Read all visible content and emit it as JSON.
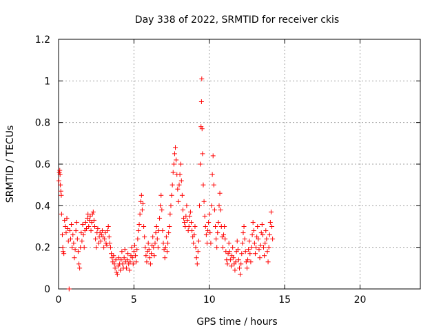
{
  "chart_data": {
    "type": "scatter",
    "title": "Day 338 of 2022, SRMTID for receiver ckis",
    "xlabel": "GPS time / hours",
    "ylabel": "SRMTID / TECUs",
    "xlim": [
      0,
      24
    ],
    "ylim": [
      0,
      1.2
    ],
    "x_ticks": [
      0,
      5,
      10,
      15,
      20
    ],
    "x_tick_labels": [
      "0",
      "5",
      "10",
      "15",
      "20"
    ],
    "y_ticks": [
      0,
      0.2,
      0.4,
      0.6,
      0.8,
      1,
      1.2
    ],
    "y_tick_labels": [
      "0",
      "0.2",
      "0.4",
      "0.6",
      "0.8",
      "1",
      "1.2"
    ],
    "grid": true,
    "marker": "+",
    "marker_color": "#ff0000",
    "series": [
      {
        "name": "SRMTID",
        "points": [
          [
            0.02,
            0.52
          ],
          [
            0.05,
            0.56
          ],
          [
            0.08,
            0.57
          ],
          [
            0.1,
            0.55
          ],
          [
            0.12,
            0.5
          ],
          [
            0.15,
            0.47
          ],
          [
            0.18,
            0.45
          ],
          [
            0.2,
            0.36
          ],
          [
            0.25,
            0.26
          ],
          [
            0.28,
            0.2
          ],
          [
            0.3,
            0.18
          ],
          [
            0.35,
            0.17
          ],
          [
            0.4,
            0.33
          ],
          [
            0.45,
            0.3
          ],
          [
            0.5,
            0.27
          ],
          [
            0.55,
            0.34
          ],
          [
            0.6,
            0.29
          ],
          [
            0.65,
            0.23
          ],
          [
            0.7,
            0.0
          ],
          [
            0.75,
            0.28
          ],
          [
            0.8,
            0.24
          ],
          [
            0.85,
            0.31
          ],
          [
            0.9,
            0.2
          ],
          [
            0.95,
            0.26
          ],
          [
            1.0,
            0.22
          ],
          [
            1.05,
            0.15
          ],
          [
            1.1,
            0.19
          ],
          [
            1.15,
            0.28
          ],
          [
            1.2,
            0.32
          ],
          [
            1.25,
            0.24
          ],
          [
            1.3,
            0.18
          ],
          [
            1.35,
            0.12
          ],
          [
            1.4,
            0.1
          ],
          [
            1.45,
            0.2
          ],
          [
            1.5,
            0.27
          ],
          [
            1.55,
            0.23
          ],
          [
            1.6,
            0.31
          ],
          [
            1.65,
            0.26
          ],
          [
            1.7,
            0.2
          ],
          [
            1.75,
            0.28
          ],
          [
            1.8,
            0.32
          ],
          [
            1.85,
            0.29
          ],
          [
            1.9,
            0.34
          ],
          [
            1.95,
            0.36
          ],
          [
            2.0,
            0.3
          ],
          [
            2.05,
            0.33
          ],
          [
            2.1,
            0.35
          ],
          [
            2.15,
            0.28
          ],
          [
            2.2,
            0.32
          ],
          [
            2.25,
            0.36
          ],
          [
            2.3,
            0.37
          ],
          [
            2.35,
            0.33
          ],
          [
            2.4,
            0.3
          ],
          [
            2.45,
            0.24
          ],
          [
            2.5,
            0.2
          ],
          [
            2.55,
            0.27
          ],
          [
            2.6,
            0.29
          ],
          [
            2.65,
            0.22
          ],
          [
            2.7,
            0.25
          ],
          [
            2.75,
            0.27
          ],
          [
            2.8,
            0.23
          ],
          [
            2.85,
            0.26
          ],
          [
            2.9,
            0.28
          ],
          [
            2.95,
            0.25
          ],
          [
            3.0,
            0.2
          ],
          [
            3.05,
            0.24
          ],
          [
            3.1,
            0.27
          ],
          [
            3.15,
            0.22
          ],
          [
            3.2,
            0.21
          ],
          [
            3.25,
            0.28
          ],
          [
            3.3,
            0.3
          ],
          [
            3.35,
            0.25
          ],
          [
            3.4,
            0.22
          ],
          [
            3.45,
            0.2
          ],
          [
            3.5,
            0.17
          ],
          [
            3.55,
            0.15
          ],
          [
            3.6,
            0.13
          ],
          [
            3.65,
            0.16
          ],
          [
            3.7,
            0.12
          ],
          [
            3.75,
            0.1
          ],
          [
            3.8,
            0.14
          ],
          [
            3.85,
            0.08
          ],
          [
            3.9,
            0.07
          ],
          [
            3.95,
            0.11
          ],
          [
            4.0,
            0.15
          ],
          [
            4.05,
            0.12
          ],
          [
            4.1,
            0.09
          ],
          [
            4.15,
            0.14
          ],
          [
            4.2,
            0.18
          ],
          [
            4.25,
            0.12
          ],
          [
            4.3,
            0.1
          ],
          [
            4.35,
            0.15
          ],
          [
            4.4,
            0.19
          ],
          [
            4.45,
            0.13
          ],
          [
            4.5,
            0.1
          ],
          [
            4.55,
            0.14
          ],
          [
            4.6,
            0.17
          ],
          [
            4.65,
            0.12
          ],
          [
            4.7,
            0.09
          ],
          [
            4.75,
            0.13
          ],
          [
            4.8,
            0.16
          ],
          [
            4.85,
            0.2
          ],
          [
            4.9,
            0.15
          ],
          [
            4.95,
            0.12
          ],
          [
            5.0,
            0.18
          ],
          [
            5.05,
            0.21
          ],
          [
            5.1,
            0.16
          ],
          [
            5.15,
            0.13
          ],
          [
            5.2,
            0.19
          ],
          [
            5.25,
            0.24
          ],
          [
            5.3,
            0.28
          ],
          [
            5.35,
            0.31
          ],
          [
            5.4,
            0.36
          ],
          [
            5.45,
            0.42
          ],
          [
            5.5,
            0.45
          ],
          [
            5.55,
            0.38
          ],
          [
            5.6,
            0.41
          ],
          [
            5.65,
            0.3
          ],
          [
            5.7,
            0.25
          ],
          [
            5.75,
            0.2
          ],
          [
            5.8,
            0.16
          ],
          [
            5.85,
            0.13
          ],
          [
            5.9,
            0.18
          ],
          [
            5.95,
            0.22
          ],
          [
            6.0,
            0.19
          ],
          [
            6.05,
            0.15
          ],
          [
            6.1,
            0.12
          ],
          [
            6.15,
            0.17
          ],
          [
            6.2,
            0.21
          ],
          [
            6.25,
            0.25
          ],
          [
            6.3,
            0.2
          ],
          [
            6.35,
            0.16
          ],
          [
            6.4,
            0.22
          ],
          [
            6.45,
            0.27
          ],
          [
            6.5,
            0.3
          ],
          [
            6.55,
            0.24
          ],
          [
            6.6,
            0.2
          ],
          [
            6.65,
            0.28
          ],
          [
            6.7,
            0.34
          ],
          [
            6.75,
            0.4
          ],
          [
            6.8,
            0.45
          ],
          [
            6.85,
            0.38
          ],
          [
            6.9,
            0.28
          ],
          [
            6.95,
            0.22
          ],
          [
            7.0,
            0.19
          ],
          [
            7.05,
            0.15
          ],
          [
            7.1,
            0.2
          ],
          [
            7.15,
            0.25
          ],
          [
            7.2,
            0.18
          ],
          [
            7.25,
            0.22
          ],
          [
            7.3,
            0.27
          ],
          [
            7.35,
            0.3
          ],
          [
            7.4,
            0.36
          ],
          [
            7.45,
            0.4
          ],
          [
            7.5,
            0.45
          ],
          [
            7.55,
            0.5
          ],
          [
            7.6,
            0.56
          ],
          [
            7.65,
            0.6
          ],
          [
            7.7,
            0.65
          ],
          [
            7.75,
            0.68
          ],
          [
            7.8,
            0.62
          ],
          [
            7.85,
            0.55
          ],
          [
            7.9,
            0.48
          ],
          [
            7.95,
            0.42
          ],
          [
            8.0,
            0.5
          ],
          [
            8.05,
            0.55
          ],
          [
            8.1,
            0.6
          ],
          [
            8.15,
            0.52
          ],
          [
            8.2,
            0.45
          ],
          [
            8.25,
            0.38
          ],
          [
            8.3,
            0.34
          ],
          [
            8.35,
            0.32
          ],
          [
            8.4,
            0.3
          ],
          [
            8.45,
            0.35
          ],
          [
            8.5,
            0.4
          ],
          [
            8.55,
            0.33
          ],
          [
            8.6,
            0.28
          ],
          [
            8.65,
            0.3
          ],
          [
            8.7,
            0.35
          ],
          [
            8.75,
            0.37
          ],
          [
            8.8,
            0.32
          ],
          [
            8.85,
            0.28
          ],
          [
            8.9,
            0.25
          ],
          [
            8.95,
            0.22
          ],
          [
            9.0,
            0.26
          ],
          [
            9.05,
            0.3
          ],
          [
            9.1,
            0.2
          ],
          [
            9.15,
            0.15
          ],
          [
            9.2,
            0.12
          ],
          [
            9.25,
            0.18
          ],
          [
            9.3,
            0.23
          ],
          [
            9.35,
            0.4
          ],
          [
            9.4,
            0.6
          ],
          [
            9.45,
            0.78
          ],
          [
            9.48,
            0.9
          ],
          [
            9.5,
            1.01
          ],
          [
            9.52,
            0.77
          ],
          [
            9.55,
            0.65
          ],
          [
            9.6,
            0.5
          ],
          [
            9.65,
            0.42
          ],
          [
            9.7,
            0.35
          ],
          [
            9.75,
            0.3
          ],
          [
            9.8,
            0.26
          ],
          [
            9.85,
            0.22
          ],
          [
            9.9,
            0.28
          ],
          [
            9.95,
            0.32
          ],
          [
            10.0,
            0.36
          ],
          [
            10.05,
            0.27
          ],
          [
            10.1,
            0.22
          ],
          [
            10.15,
            0.4
          ],
          [
            10.2,
            0.55
          ],
          [
            10.25,
            0.64
          ],
          [
            10.3,
            0.5
          ],
          [
            10.35,
            0.38
          ],
          [
            10.4,
            0.3
          ],
          [
            10.45,
            0.24
          ],
          [
            10.5,
            0.2
          ],
          [
            10.55,
            0.27
          ],
          [
            10.6,
            0.32
          ],
          [
            10.65,
            0.4
          ],
          [
            10.7,
            0.46
          ],
          [
            10.75,
            0.38
          ],
          [
            10.8,
            0.3
          ],
          [
            10.85,
            0.25
          ],
          [
            10.9,
            0.2
          ],
          [
            10.95,
            0.26
          ],
          [
            11.0,
            0.3
          ],
          [
            11.05,
            0.24
          ],
          [
            11.1,
            0.18
          ],
          [
            11.15,
            0.14
          ],
          [
            11.2,
            0.12
          ],
          [
            11.25,
            0.17
          ],
          [
            11.3,
            0.22
          ],
          [
            11.35,
            0.18
          ],
          [
            11.4,
            0.14
          ],
          [
            11.45,
            0.11
          ],
          [
            11.5,
            0.16
          ],
          [
            11.55,
            0.2
          ],
          [
            11.6,
            0.15
          ],
          [
            11.65,
            0.12
          ],
          [
            11.7,
            0.09
          ],
          [
            11.75,
            0.13
          ],
          [
            11.8,
            0.18
          ],
          [
            11.85,
            0.23
          ],
          [
            11.9,
            0.19
          ],
          [
            11.95,
            0.14
          ],
          [
            12.0,
            0.1
          ],
          [
            12.05,
            0.07
          ],
          [
            12.1,
            0.12
          ],
          [
            12.15,
            0.17
          ],
          [
            12.2,
            0.22
          ],
          [
            12.25,
            0.27
          ],
          [
            12.3,
            0.3
          ],
          [
            12.35,
            0.24
          ],
          [
            12.4,
            0.18
          ],
          [
            12.45,
            0.13
          ],
          [
            12.5,
            0.1
          ],
          [
            12.55,
            0.14
          ],
          [
            12.6,
            0.19
          ],
          [
            12.65,
            0.23
          ],
          [
            12.7,
            0.17
          ],
          [
            12.75,
            0.13
          ],
          [
            12.8,
            0.2
          ],
          [
            12.85,
            0.26
          ],
          [
            12.9,
            0.32
          ],
          [
            12.95,
            0.28
          ],
          [
            13.0,
            0.22
          ],
          [
            13.05,
            0.17
          ],
          [
            13.1,
            0.2
          ],
          [
            13.15,
            0.25
          ],
          [
            13.2,
            0.3
          ],
          [
            13.25,
            0.24
          ],
          [
            13.3,
            0.19
          ],
          [
            13.35,
            0.15
          ],
          [
            13.4,
            0.21
          ],
          [
            13.45,
            0.27
          ],
          [
            13.5,
            0.31
          ],
          [
            13.55,
            0.26
          ],
          [
            13.6,
            0.2
          ],
          [
            13.65,
            0.16
          ],
          [
            13.7,
            0.22
          ],
          [
            13.75,
            0.28
          ],
          [
            13.8,
            0.24
          ],
          [
            13.85,
            0.18
          ],
          [
            13.9,
            0.13
          ],
          [
            13.95,
            0.2
          ],
          [
            14.0,
            0.26
          ],
          [
            14.05,
            0.32
          ],
          [
            14.1,
            0.37
          ],
          [
            14.15,
            0.3
          ],
          [
            14.2,
            0.24
          ]
        ]
      }
    ]
  }
}
